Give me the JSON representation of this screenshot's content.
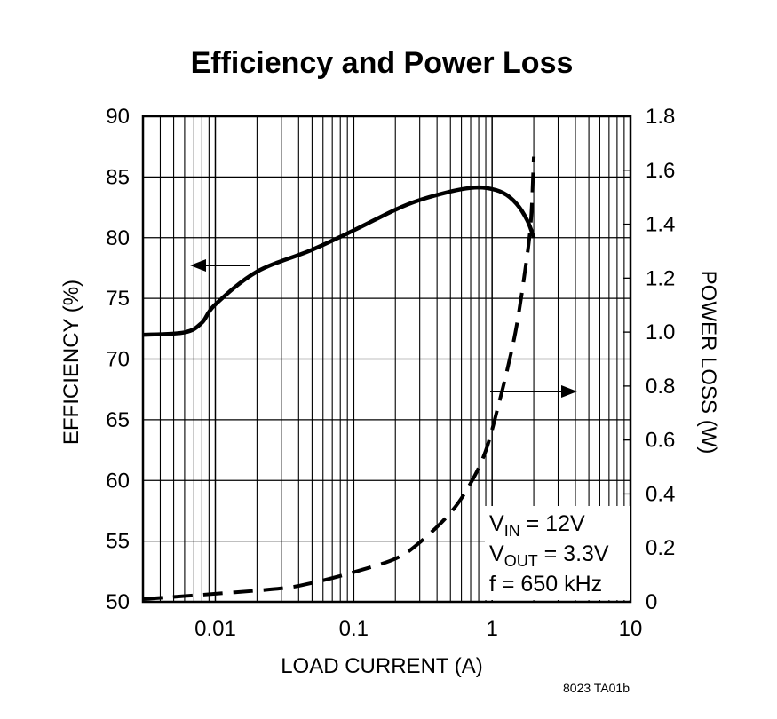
{
  "chart_data": {
    "type": "line",
    "title": "Efficiency and Power Loss",
    "xlabel": "LOAD CURRENT (A)",
    "ylabel_left": "EFFICIENCY (%)",
    "ylabel_right": "POWER LOSS (W)",
    "x_scale": "log",
    "xlim": [
      0.003,
      10
    ],
    "ylim_left": [
      50,
      90
    ],
    "ylim_right": [
      0,
      1.8
    ],
    "x_ticks": [
      {
        "value": 0.01,
        "label": "0.01"
      },
      {
        "value": 0.1,
        "label": "0.1"
      },
      {
        "value": 1,
        "label": "1"
      },
      {
        "value": 10,
        "label": "10"
      }
    ],
    "y_ticks_left": [
      {
        "value": 50,
        "label": "50"
      },
      {
        "value": 55,
        "label": "55"
      },
      {
        "value": 60,
        "label": "60"
      },
      {
        "value": 65,
        "label": "65"
      },
      {
        "value": 70,
        "label": "70"
      },
      {
        "value": 75,
        "label": "75"
      },
      {
        "value": 80,
        "label": "80"
      },
      {
        "value": 85,
        "label": "85"
      },
      {
        "value": 90,
        "label": "90"
      }
    ],
    "y_ticks_right": [
      {
        "value": 0,
        "label": "0"
      },
      {
        "value": 0.2,
        "label": "0.2"
      },
      {
        "value": 0.4,
        "label": "0.4"
      },
      {
        "value": 0.6,
        "label": "0.6"
      },
      {
        "value": 0.8,
        "label": "0.8"
      },
      {
        "value": 1.0,
        "label": "1.0"
      },
      {
        "value": 1.2,
        "label": "1.2"
      },
      {
        "value": 1.4,
        "label": "1.4"
      },
      {
        "value": 1.6,
        "label": "1.6"
      },
      {
        "value": 1.8,
        "label": "1.8"
      }
    ],
    "series": [
      {
        "name": "Efficiency",
        "axis": "left",
        "style": "solid",
        "x": [
          0.003,
          0.006,
          0.008,
          0.01,
          0.02,
          0.05,
          0.1,
          0.2,
          0.3,
          0.5,
          0.7,
          0.9,
          1.2,
          1.5,
          1.8,
          2.0
        ],
        "y": [
          72.0,
          72.2,
          73.0,
          74.5,
          77.2,
          79.0,
          80.6,
          82.3,
          83.1,
          83.8,
          84.1,
          84.1,
          83.7,
          82.8,
          81.4,
          80.0
        ]
      },
      {
        "name": "Power Loss",
        "axis": "right",
        "style": "dashed",
        "x": [
          0.003,
          0.01,
          0.03,
          0.05,
          0.1,
          0.2,
          0.3,
          0.5,
          0.7,
          0.9,
          1.1,
          1.3,
          1.5,
          1.7,
          1.9,
          2.0
        ],
        "y": [
          0.01,
          0.03,
          0.05,
          0.07,
          0.11,
          0.16,
          0.22,
          0.33,
          0.44,
          0.56,
          0.72,
          0.87,
          1.02,
          1.2,
          1.4,
          1.65
        ]
      }
    ],
    "annotations": [
      {
        "name": "left-arrow",
        "text": "",
        "points_to": "left-axis"
      },
      {
        "name": "right-arrow",
        "text": "",
        "points_to": "right-axis"
      }
    ],
    "conditions": {
      "vin_label": "V",
      "vin_sub": "IN",
      "vin_value": " = 12V",
      "vout_label": "V",
      "vout_sub": "OUT",
      "vout_value": " = 3.3V",
      "freq": "f = 650 kHz"
    },
    "figure_code": "8023 TA01b"
  }
}
